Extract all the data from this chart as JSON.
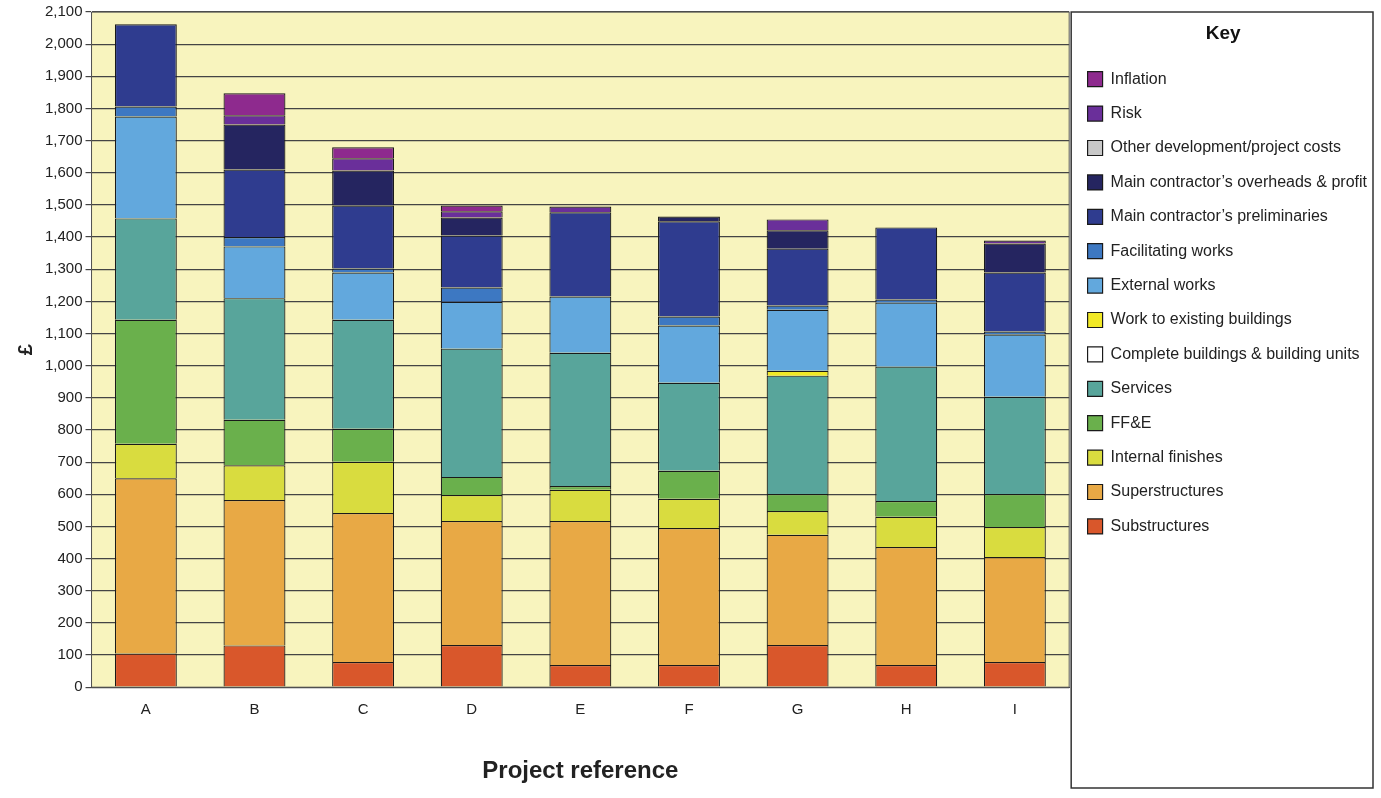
{
  "chart_data": {
    "type": "bar",
    "stacked": true,
    "xlabel": "Project reference",
    "ylabel": "£",
    "legend_title": "Key",
    "legend": "right",
    "grid": "y",
    "categories": [
      "A",
      "B",
      "C",
      "D",
      "E",
      "F",
      "G",
      "H",
      "I"
    ],
    "ylim": [
      0,
      2100
    ],
    "yticks": [
      0,
      100,
      200,
      300,
      400,
      500,
      600,
      700,
      800,
      900,
      {
        "value": 1000,
        "label": "1,000"
      },
      {
        "value": 1100,
        "label": "1,100"
      },
      {
        "value": 1200,
        "label": "1,200"
      },
      {
        "value": 1300,
        "label": "1,300"
      },
      {
        "value": 1400,
        "label": "1,400"
      },
      {
        "value": 1500,
        "label": "1,500"
      },
      {
        "value": 1600,
        "label": "1,600"
      },
      {
        "value": 1700,
        "label": "1,700"
      },
      {
        "value": 1800,
        "label": "1,800"
      },
      {
        "value": 1900,
        "label": "1,900"
      },
      {
        "value": 2000,
        "label": "2,000"
      },
      {
        "value": 2100,
        "label": "2,100"
      }
    ],
    "series": [
      {
        "name": "Substructures",
        "color": "#d9572b",
        "values": [
          105,
          130,
          78,
          131,
          69,
          69,
          131,
          69,
          78
        ]
      },
      {
        "name": "Superstructures",
        "color": "#e8a945",
        "values": [
          545,
          452,
          464,
          386,
          448,
          426,
          343,
          367,
          327
        ]
      },
      {
        "name": "Internal finishes",
        "color": "#d9dc3f",
        "values": [
          107,
          108,
          159,
          81,
          97,
          91,
          74,
          94,
          93
        ]
      },
      {
        "name": "FF&E",
        "color": "#6ab04c",
        "values": [
          386,
          142,
          103,
          56,
          12,
          87,
          53,
          49,
          103
        ]
      },
      {
        "name": "Services",
        "color": "#58a59b",
        "values": [
          315,
          378,
          339,
          399,
          414,
          274,
          368,
          418,
          302
        ]
      },
      {
        "name": "Complete buildings & building units",
        "color": "#ffffff",
        "values": [
          0,
          0,
          0,
          0,
          0,
          0,
          0,
          0,
          0
        ]
      },
      {
        "name": "Work to existing buildings",
        "color": "#f2e926",
        "values": [
          0,
          0,
          0,
          0,
          0,
          0,
          15,
          0,
          0
        ]
      },
      {
        "name": "External works",
        "color": "#62a8dd",
        "values": [
          317,
          161,
          147,
          146,
          175,
          178,
          190,
          199,
          194
        ]
      },
      {
        "name": "Facilitating works",
        "color": "#3d78c2",
        "values": [
          31,
          29,
          12,
          44,
          0,
          28,
          13,
          10,
          9
        ]
      },
      {
        "name": "Main contractor’s preliminaries",
        "color": "#2f3c8f",
        "values": [
          256,
          210,
          196,
          162,
          262,
          296,
          177,
          224,
          184
        ]
      },
      {
        "name": "Main contractor’s overheads & profit",
        "color": "#252560",
        "values": [
          0,
          140,
          109,
          56,
          0,
          15,
          57,
          0,
          90
        ]
      },
      {
        "name": "Other development/project costs",
        "color": "#c8c8c8",
        "values": [
          0,
          0,
          0,
          0,
          0,
          0,
          0,
          0,
          0
        ]
      },
      {
        "name": "Risk",
        "color": "#6a2f9a",
        "values": [
          0,
          29,
          38,
          19,
          18,
          0,
          34,
          0,
          9
        ]
      },
      {
        "name": "Inflation",
        "color": "#8e2a8e",
        "values": [
          0,
          68,
          34,
          18,
          0,
          0,
          0,
          0,
          0
        ]
      }
    ]
  }
}
